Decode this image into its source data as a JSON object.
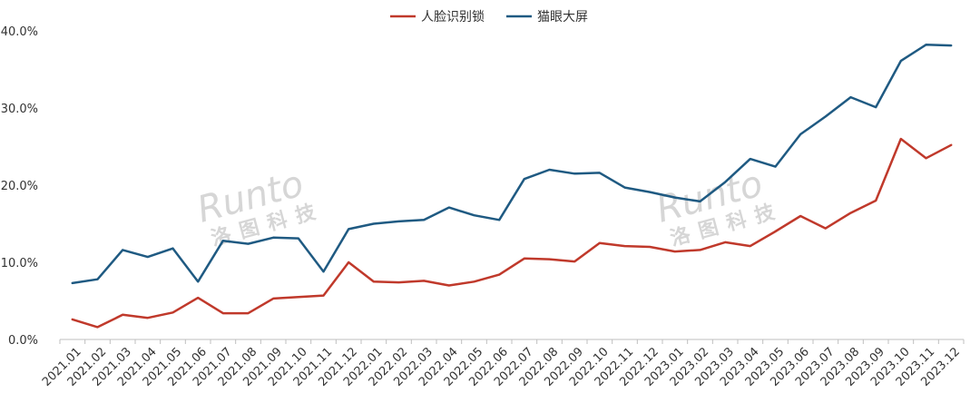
{
  "watermark": {
    "brand": "Runto",
    "cn": "洛图科技"
  },
  "chart_data": {
    "type": "line",
    "title": "",
    "xlabel": "",
    "ylabel": "",
    "ylim": [
      0,
      40
    ],
    "y_ticks": [
      "0.0%",
      "10.0%",
      "20.0%",
      "30.0%",
      "40.0%"
    ],
    "grid": false,
    "legend_position": "top-center",
    "categories": [
      "2021.01",
      "2021.02",
      "2021.03",
      "2021.04",
      "2021.05",
      "2021.06",
      "2021.07",
      "2021.08",
      "2021.09",
      "2021.10",
      "2021.11",
      "2021.12",
      "2022.01",
      "2022.02",
      "2022.03",
      "2022.04",
      "2022.05",
      "2022.06",
      "2022.07",
      "2022.08",
      "2022.09",
      "2022.10",
      "2022.11",
      "2022.12",
      "2023.01",
      "2023.02",
      "2023.03",
      "2023.04",
      "2023.05",
      "2023.06",
      "2023.07",
      "2023.08",
      "2023.09",
      "2023.10",
      "2023.11",
      "2023.12"
    ],
    "series": [
      {
        "name": "人脸识别锁",
        "color": "#c0392b",
        "values": [
          2.6,
          1.6,
          3.2,
          2.8,
          3.5,
          5.4,
          3.4,
          3.4,
          5.3,
          5.5,
          5.7,
          10.0,
          7.5,
          7.4,
          7.6,
          7.0,
          7.5,
          8.4,
          10.5,
          10.4,
          10.1,
          12.5,
          12.1,
          12.0,
          11.4,
          11.6,
          12.6,
          12.1,
          14.0,
          16.0,
          14.4,
          16.4,
          18.0,
          26.0,
          23.5,
          25.2
        ]
      },
      {
        "name": "猫眼大屏",
        "color": "#1f5a82",
        "values": [
          7.3,
          7.8,
          11.6,
          10.7,
          11.8,
          7.5,
          12.8,
          12.4,
          13.2,
          13.1,
          8.8,
          14.3,
          15.0,
          15.3,
          15.5,
          17.1,
          16.1,
          15.5,
          20.8,
          22.0,
          21.5,
          21.6,
          19.7,
          19.1,
          18.4,
          17.9,
          20.4,
          23.4,
          22.4,
          26.6,
          28.9,
          31.4,
          30.1,
          36.1,
          38.2,
          38.1
        ]
      }
    ]
  }
}
